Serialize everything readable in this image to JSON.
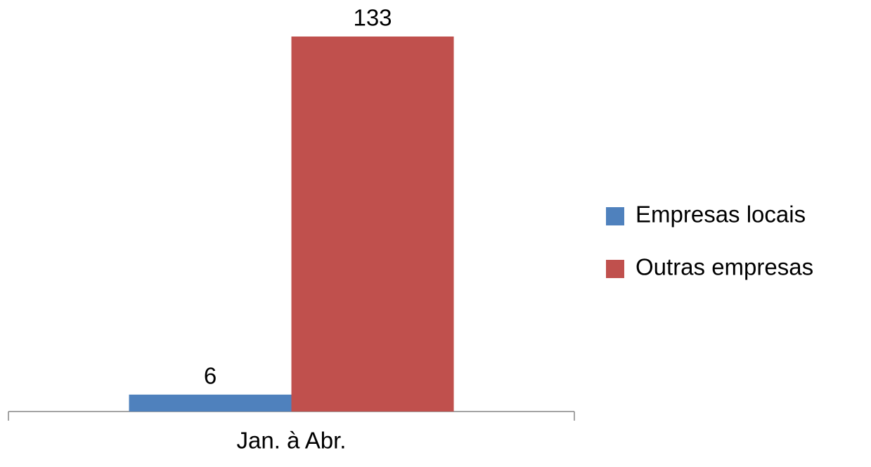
{
  "chart_data": {
    "type": "bar",
    "categories": [
      "Jan. à Abr."
    ],
    "series": [
      {
        "name": "Empresas locais",
        "color": "#4f81bd",
        "values": [
          6
        ]
      },
      {
        "name": "Outras empresas",
        "color": "#c0504d",
        "values": [
          133
        ]
      }
    ],
    "legend": "right"
  }
}
